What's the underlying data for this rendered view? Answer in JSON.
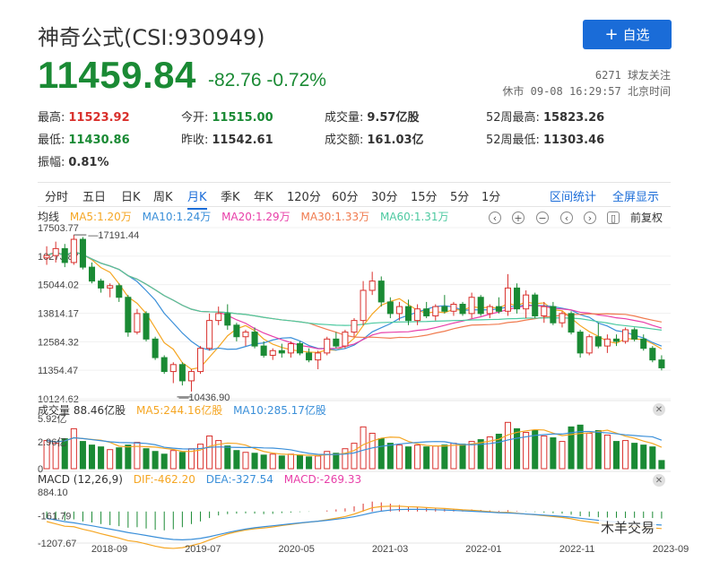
{
  "header": {
    "title": "神奇公式(CSI:930949)",
    "follow_button": "自选",
    "price": "11459.84",
    "change": "-82.76",
    "change_pct": "-0.72%",
    "followers": "6271 球友关注",
    "status_time": "休市 09-08 16:29:57 北京时间"
  },
  "stats": {
    "high_label": "最高:",
    "high": "11523.92",
    "open_label": "今开:",
    "open": "11515.00",
    "volume_label": "成交量:",
    "volume": "9.57亿股",
    "w52_high_label": "52周最高:",
    "w52_high": "15823.26",
    "low_label": "最低:",
    "low": "11430.86",
    "prev_close_label": "昨收:",
    "prev_close": "11542.61",
    "amount_label": "成交额:",
    "amount": "161.03亿",
    "w52_low_label": "52周最低:",
    "w52_low": "11303.46",
    "amplitude_label": "振幅:",
    "amplitude": "0.81%"
  },
  "tabs": [
    "分时",
    "五日",
    "日K",
    "周K",
    "月K",
    "季K",
    "年K",
    "120分",
    "60分",
    "30分",
    "15分",
    "5分",
    "1分"
  ],
  "active_tab": "月K",
  "tab_links": {
    "interval_stats": "区间统计",
    "fullscreen": "全屏显示"
  },
  "ma_legend": {
    "label": "均线",
    "ma5": "MA5:1.20万",
    "ma10": "MA10:1.24万",
    "ma20": "MA20:1.29万",
    "ma30": "MA30:1.33万",
    "ma60": "MA60:1.31万"
  },
  "toolbar": {
    "prev": "‹",
    "zoom_in": "+",
    "zoom_out": "−",
    "next": "›",
    "lock": "▯",
    "adjust": "前复权"
  },
  "volume_panel": {
    "label": "成交量 88.46亿股",
    "ma5": "MA5:244.16亿股",
    "ma10": "MA10:285.17亿股",
    "y_labels": [
      "5.92亿",
      "2.96亿",
      "0"
    ]
  },
  "macd_panel": {
    "label": "MACD (12,26,9)",
    "dif": "DIF:-462.20",
    "dea": "DEA:-327.54",
    "macd": "MACD:-269.33",
    "y_labels": [
      "884.10",
      "-161.79",
      "-1207.67"
    ]
  },
  "watermark": "木羊交易",
  "colors": {
    "up": "#d9302c",
    "down": "#1a8a34",
    "accent": "#1a6cd8",
    "ma5": "#f5a623",
    "ma10": "#3a8fd9",
    "ma20": "#e83ea8",
    "ma30": "#f07b4f",
    "ma60": "#4cc9a0"
  },
  "chart_data": {
    "type": "candlestick",
    "title": "神奇公式(CSI:930949)",
    "y_labels_price": [
      "17503.77",
      "16273.87",
      "15044.02",
      "13814.17",
      "12584.32",
      "11354.47",
      "10124.62"
    ],
    "ylim": [
      10124.62,
      17503.77
    ],
    "annotations": {
      "high": "17191.44",
      "low": "10436.90"
    },
    "x_labels": [
      "2018-09",
      "2019-07",
      "2020-05",
      "2021-03",
      "2022-01",
      "2022-11",
      "2023-09"
    ],
    "candles": [
      [
        16200,
        16700,
        15900,
        16300
      ],
      [
        16300,
        16900,
        16000,
        16600
      ],
      [
        16600,
        16800,
        15800,
        16000
      ],
      [
        16000,
        17191.44,
        15900,
        17000
      ],
      [
        17000,
        17100,
        15700,
        15800
      ],
      [
        15800,
        16000,
        15100,
        15200
      ],
      [
        15200,
        15300,
        14700,
        14900
      ],
      [
        14900,
        15100,
        14500,
        15000
      ],
      [
        15000,
        15100,
        14300,
        14500
      ],
      [
        14500,
        14600,
        12800,
        13000
      ],
      [
        13000,
        14000,
        12900,
        13800
      ],
      [
        13800,
        13900,
        12600,
        12700
      ],
      [
        12700,
        12800,
        11800,
        11900
      ],
      [
        11900,
        12000,
        11200,
        11300
      ],
      [
        11300,
        11700,
        10800,
        11600
      ],
      [
        11600,
        11700,
        10700,
        10900
      ],
      [
        10900,
        11400,
        10436.9,
        11300
      ],
      [
        11300,
        12400,
        11200,
        12300
      ],
      [
        12300,
        13800,
        12200,
        13500
      ],
      [
        13500,
        14100,
        13300,
        13800
      ],
      [
        13800,
        14200,
        13100,
        13300
      ],
      [
        13300,
        13400,
        12600,
        12800
      ],
      [
        12800,
        13100,
        12400,
        13000
      ],
      [
        13000,
        13200,
        12300,
        12400
      ],
      [
        12400,
        12600,
        11900,
        12000
      ],
      [
        12000,
        12300,
        11800,
        12200
      ],
      [
        12200,
        12500,
        11900,
        12100
      ],
      [
        12100,
        12600,
        11900,
        12500
      ],
      [
        12500,
        12600,
        12000,
        12100
      ],
      [
        12100,
        12300,
        11700,
        11800
      ],
      [
        11800,
        12200,
        11400,
        12100
      ],
      [
        12100,
        12800,
        12000,
        12700
      ],
      [
        12700,
        13000,
        12300,
        12400
      ],
      [
        12400,
        13100,
        12300,
        13000
      ],
      [
        13000,
        13600,
        12800,
        13500
      ],
      [
        13500,
        15200,
        13300,
        14800
      ],
      [
        14800,
        15600,
        14600,
        15200
      ],
      [
        15200,
        15400,
        14100,
        14300
      ],
      [
        14300,
        14500,
        13600,
        13800
      ],
      [
        13800,
        14300,
        13500,
        14100
      ],
      [
        14100,
        14400,
        13300,
        13500
      ],
      [
        13500,
        14200,
        13300,
        14000
      ],
      [
        14000,
        14300,
        13600,
        13700
      ],
      [
        13700,
        14200,
        13500,
        14100
      ],
      [
        14100,
        14600,
        13800,
        13900
      ],
      [
        13900,
        14300,
        13700,
        14200
      ],
      [
        14200,
        14300,
        13700,
        13800
      ],
      [
        13800,
        14700,
        13600,
        14500
      ],
      [
        14500,
        14600,
        13700,
        13800
      ],
      [
        13800,
        14200,
        13600,
        14100
      ],
      [
        14100,
        14500,
        13800,
        13900
      ],
      [
        13900,
        15500,
        13700,
        14900
      ],
      [
        14900,
        15100,
        13800,
        14000
      ],
      [
        14000,
        14800,
        13600,
        14600
      ],
      [
        14600,
        14700,
        13600,
        13700
      ],
      [
        13700,
        14300,
        13400,
        14100
      ],
      [
        14100,
        14300,
        13300,
        13400
      ],
      [
        13400,
        13900,
        13200,
        13800
      ],
      [
        13800,
        13900,
        12900,
        13000
      ],
      [
        13000,
        13100,
        11900,
        12100
      ],
      [
        12100,
        12900,
        12000,
        12800
      ],
      [
        12800,
        13400,
        12300,
        12400
      ],
      [
        12400,
        12900,
        12100,
        12700
      ],
      [
        12700,
        12900,
        12400,
        12600
      ],
      [
        12600,
        13200,
        12500,
        13100
      ],
      [
        13100,
        13200,
        12600,
        12700
      ],
      [
        12700,
        12900,
        12200,
        12300
      ],
      [
        12300,
        12400,
        11700,
        11800
      ],
      [
        11800,
        12000,
        11350,
        11460
      ]
    ],
    "volume": [
      3.1,
      2.8,
      3.3,
      4.4,
      3.0,
      2.6,
      2.4,
      2.1,
      2.3,
      2.6,
      2.9,
      2.2,
      1.9,
      1.6,
      2.0,
      1.8,
      2.2,
      2.7,
      3.6,
      3.1,
      2.5,
      2.0,
      1.8,
      1.7,
      1.5,
      1.6,
      1.4,
      1.6,
      1.5,
      1.3,
      1.4,
      1.9,
      1.7,
      2.2,
      2.8,
      4.6,
      3.9,
      3.3,
      2.8,
      2.6,
      2.4,
      2.6,
      2.4,
      2.5,
      2.6,
      2.8,
      2.7,
      3.0,
      3.2,
      3.5,
      3.8,
      5.1,
      4.4,
      4.0,
      4.2,
      3.6,
      3.4,
      3.0,
      4.6,
      4.8,
      3.9,
      4.2,
      3.7,
      3.0,
      3.1,
      2.8,
      2.6,
      2.4,
      0.9
    ],
    "macd_hist": [
      -250,
      -300,
      -350,
      -300,
      -380,
      -420,
      -480,
      -520,
      -560,
      -620,
      -600,
      -650,
      -700,
      -720,
      -680,
      -600,
      -480,
      -380,
      -250,
      -150,
      -100,
      -80,
      -70,
      -80,
      -100,
      -90,
      -60,
      -40,
      -20,
      -10,
      0,
      40,
      80,
      120,
      200,
      300,
      380,
      350,
      300,
      250,
      200,
      180,
      150,
      130,
      120,
      100,
      80,
      80,
      60,
      40,
      30,
      50,
      20,
      -10,
      -20,
      -40,
      -60,
      -80,
      -120,
      -180,
      -200,
      -220,
      -230,
      -240,
      -250,
      -240,
      -250,
      -260,
      -269.33
    ]
  }
}
